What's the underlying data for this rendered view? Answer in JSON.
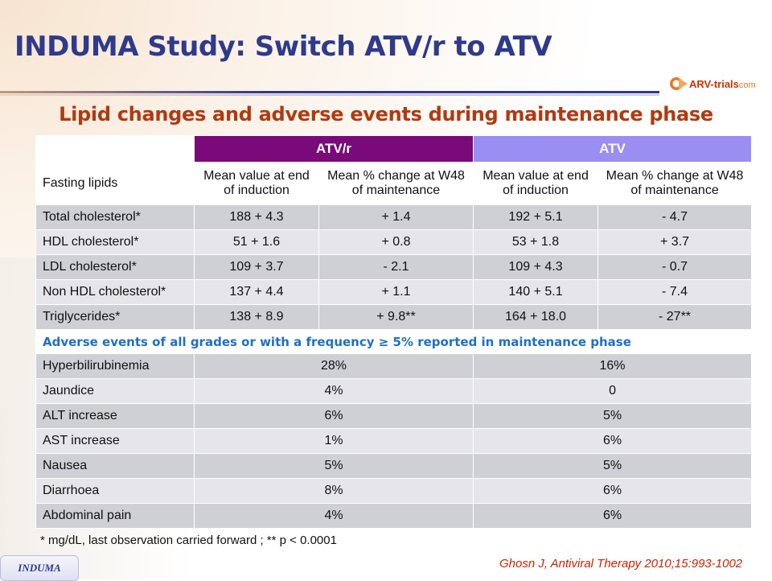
{
  "title": "INDUMA Study: Switch ATV/r to ATV",
  "logo": {
    "brand": "ARV-trials",
    "suffix": "com",
    "mark_color": "#e87722"
  },
  "subtitle": "Lipid changes and adverse events during maintenance phase",
  "table": {
    "group_headers": {
      "atvr": "ATV/r",
      "atv": "ATV"
    },
    "sub_headers": {
      "label": "Fasting lipids",
      "atvr_mean": "Mean value at end of induction",
      "atvr_change": "Mean % change at W48 of maintenance",
      "atv_mean": "Mean value at end of induction",
      "atv_change": "Mean % change at W48 of maintenance"
    },
    "lipid_rows": [
      {
        "label": "Total cholesterol*",
        "atvr_mean": "188 + 4.3",
        "atvr_change": "+ 1.4",
        "atv_mean": "192 + 5.1",
        "atv_change": "- 4.7"
      },
      {
        "label": "HDL cholesterol*",
        "atvr_mean": "51 + 1.6",
        "atvr_change": "+ 0.8",
        "atv_mean": "53 + 1.8",
        "atv_change": "+ 3.7"
      },
      {
        "label": "LDL cholesterol*",
        "atvr_mean": "109 + 3.7",
        "atvr_change": "- 2.1",
        "atv_mean": "109 + 4.3",
        "atv_change": "- 0.7"
      },
      {
        "label": "Non HDL cholesterol*",
        "atvr_mean": "137 + 4.4",
        "atvr_change": "+ 1.1",
        "atv_mean": "140 + 5.1",
        "atv_change": "- 7.4"
      },
      {
        "label": "Triglycerides*",
        "atvr_mean": "138 + 8.9",
        "atvr_change": "+ 9.8**",
        "atv_mean": "164 + 18.0",
        "atv_change": "- 27**"
      }
    ],
    "ae_title": "Adverse events of all grades or with a frequency  ≥  5% reported in maintenance phase",
    "ae_rows": [
      {
        "label": "Hyperbilirubinemia",
        "atvr": "28%",
        "atv": "16%"
      },
      {
        "label": "Jaundice",
        "atvr": "4%",
        "atv": "0"
      },
      {
        "label": "ALT increase",
        "atvr": "6%",
        "atv": "5%"
      },
      {
        "label": "AST increase",
        "atvr": "1%",
        "atv": "6%"
      },
      {
        "label": "Nausea",
        "atvr": "5%",
        "atv": "5%"
      },
      {
        "label": "Diarrhoea",
        "atvr": "8%",
        "atv": "6%"
      },
      {
        "label": "Abdominal pain",
        "atvr": "4%",
        "atv": "6%"
      }
    ],
    "colors": {
      "atvr_header": "#7a0a7a",
      "atv_header": "#9a8ef2",
      "ae_title": "#1f6fc4"
    }
  },
  "footnote": "* mg/dL, last observation carried forward ; ** p < 0.0001",
  "badge": "INDUMA",
  "citation": "Ghosn J, Antiviral Therapy 2010;15:993-1002"
}
